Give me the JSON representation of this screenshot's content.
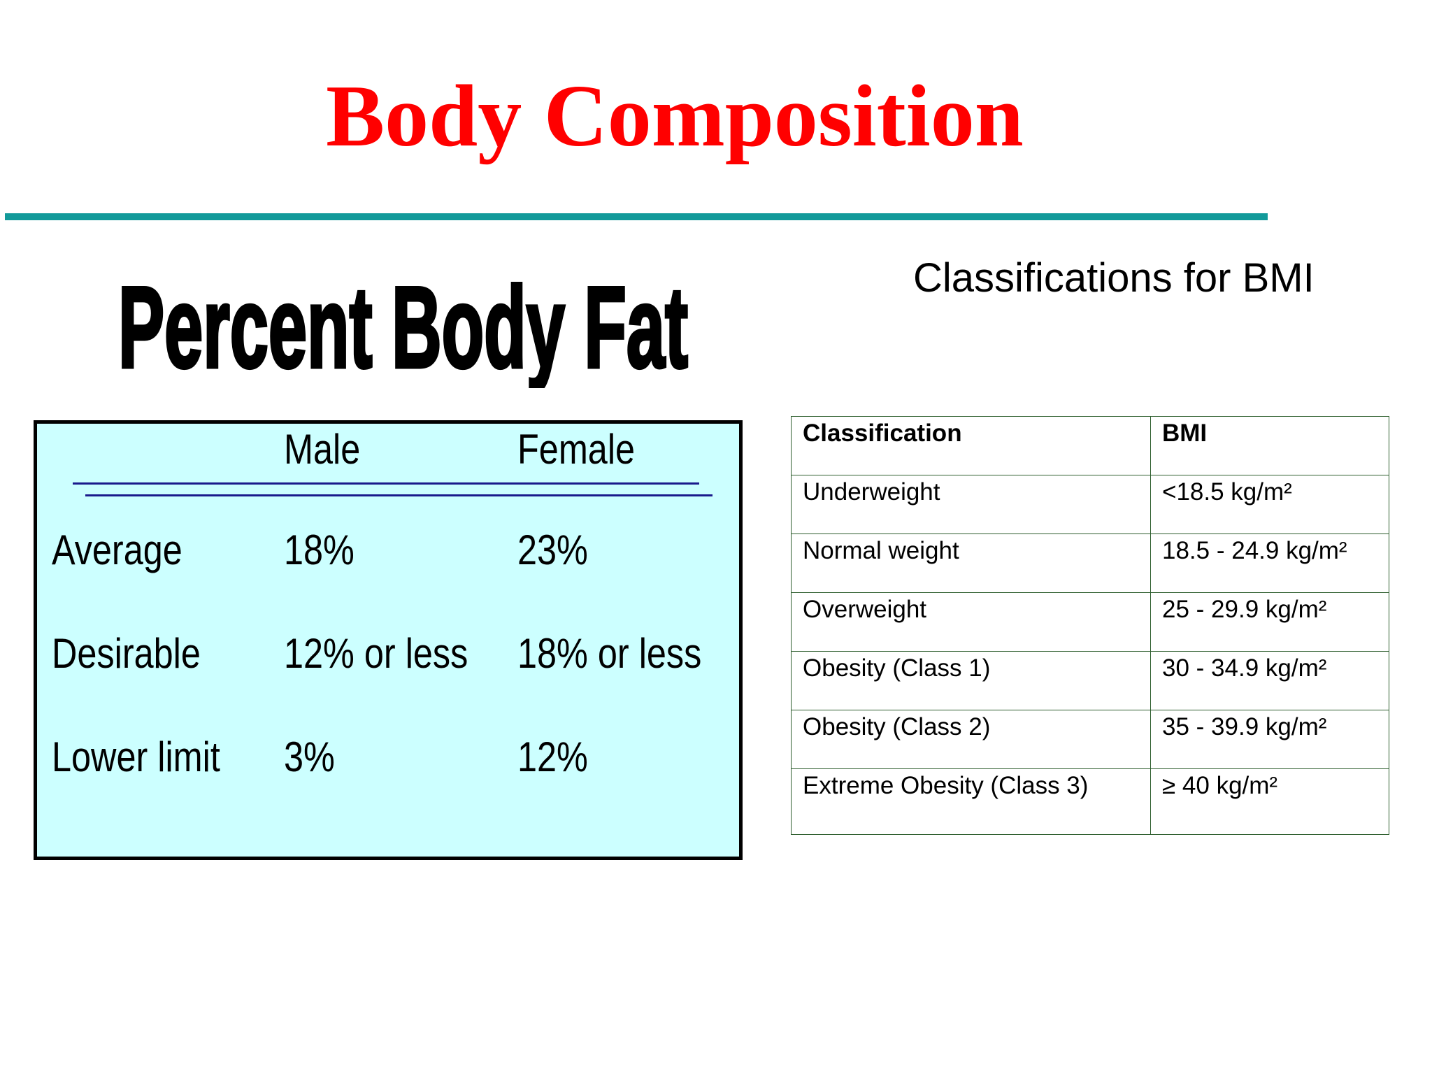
{
  "header": {
    "title": "Body Composition"
  },
  "body_fat": {
    "title": "Percent Body Fat",
    "columns": [
      "Male",
      "Female"
    ],
    "rows": [
      [
        "Average",
        "18%",
        "23%"
      ],
      [
        "Desirable",
        "12% or less",
        "18% or less"
      ],
      [
        "Lower limit",
        "3%",
        "12%"
      ]
    ]
  },
  "bmi": {
    "title": "Classifications for BMI",
    "columns": [
      "Classification",
      "BMI"
    ],
    "rows": [
      [
        "Underweight",
        "<18.5 kg/m²"
      ],
      [
        "Normal weight",
        "18.5 - 24.9 kg/m²"
      ],
      [
        "Overweight",
        "25 - 29.9 kg/m²"
      ],
      [
        "Obesity (Class 1)",
        "30 - 34.9 kg/m²"
      ],
      [
        "Obesity (Class 2)",
        "35 - 39.9 kg/m²"
      ],
      [
        "Extreme Obesity (Class 3)",
        "≥ 40 kg/m²"
      ]
    ]
  }
}
